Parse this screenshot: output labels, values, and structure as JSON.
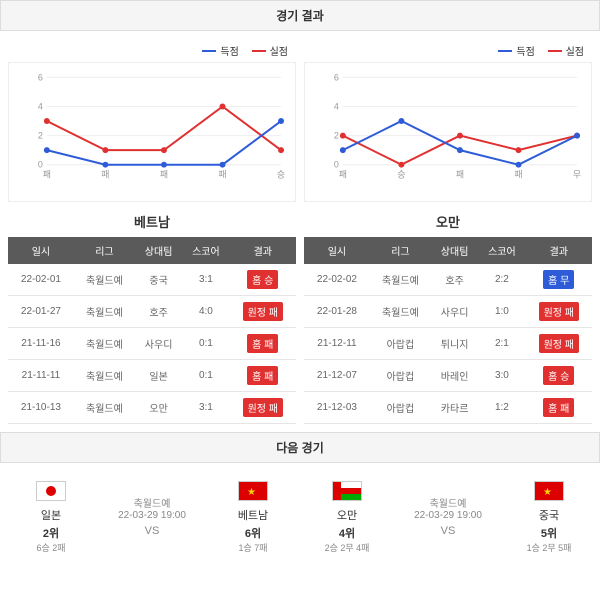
{
  "sections": {
    "results_header": "경기 결과",
    "next_header": "다음 경기"
  },
  "chart_style": {
    "goals_for_color": "#2e5bd8",
    "goals_against_color": "#e03030",
    "grid_color": "#eeeeee",
    "axis_color": "#cccccc",
    "ymax": 6,
    "ytick_step": 2,
    "line_width": 2,
    "marker_radius": 3
  },
  "legend": {
    "for_label": "득점",
    "against_label": "실점"
  },
  "table_headers": [
    "일시",
    "리그",
    "상대팀",
    "스코어",
    "결과"
  ],
  "result_colors": {
    "home_win": "#e03030",
    "home_loss": "#e03030",
    "home_draw": "#2e5bd8",
    "away_win": "#2e5bd8",
    "away_loss": "#e03030"
  },
  "teams": [
    {
      "name": "베트남",
      "chart": {
        "x_labels": [
          "패",
          "패",
          "패",
          "패",
          "승"
        ],
        "for": [
          1,
          0,
          0,
          0,
          3
        ],
        "against": [
          3,
          1,
          1,
          4,
          1
        ]
      },
      "rows": [
        {
          "date": "22-02-01",
          "league": "축월드예",
          "opp": "중국",
          "score": "3:1",
          "result": "홈 승",
          "bg": "#e03030"
        },
        {
          "date": "22-01-27",
          "league": "축월드예",
          "opp": "호주",
          "score": "4:0",
          "result": "원정 패",
          "bg": "#e03030"
        },
        {
          "date": "21-11-16",
          "league": "축월드예",
          "opp": "사우디",
          "score": "0:1",
          "result": "홈 패",
          "bg": "#e03030"
        },
        {
          "date": "21-11-11",
          "league": "축월드예",
          "opp": "일본",
          "score": "0:1",
          "result": "홈 패",
          "bg": "#e03030"
        },
        {
          "date": "21-10-13",
          "league": "축월드예",
          "opp": "오만",
          "score": "3:1",
          "result": "원정 패",
          "bg": "#e03030"
        }
      ]
    },
    {
      "name": "오만",
      "chart": {
        "x_labels": [
          "패",
          "승",
          "패",
          "패",
          "무"
        ],
        "for": [
          1,
          3,
          1,
          0,
          2
        ],
        "against": [
          2,
          0,
          2,
          1,
          2
        ]
      },
      "rows": [
        {
          "date": "22-02-02",
          "league": "축월드예",
          "opp": "호주",
          "score": "2:2",
          "result": "홈 무",
          "bg": "#2e5bd8"
        },
        {
          "date": "22-01-28",
          "league": "축월드예",
          "opp": "사우디",
          "score": "1:0",
          "result": "원정 패",
          "bg": "#e03030"
        },
        {
          "date": "21-12-11",
          "league": "아랍컵",
          "opp": "튀니지",
          "score": "2:1",
          "result": "원정 패",
          "bg": "#e03030"
        },
        {
          "date": "21-12-07",
          "league": "아랍컵",
          "opp": "바레인",
          "score": "3:0",
          "result": "홈 승",
          "bg": "#e03030"
        },
        {
          "date": "21-12-03",
          "league": "아랍컵",
          "opp": "카타르",
          "score": "1:2",
          "result": "홈 패",
          "bg": "#e03030"
        }
      ]
    }
  ],
  "next_matches": [
    {
      "left": {
        "name": "일본",
        "rank": "2위",
        "record": "6승 2패",
        "flag_bg": "#fff",
        "flag_dot": "#d00"
      },
      "center": {
        "league": "축월드예",
        "datetime": "22-03-29 19:00"
      },
      "right": {
        "name": "베트남",
        "rank": "6위",
        "record": "1승 7패",
        "flag_bg": "#d00",
        "flag_star": "#fc0"
      }
    },
    {
      "left": {
        "name": "오만",
        "rank": "4위",
        "record": "2승 2무 4패",
        "flag_bg": "#fff",
        "flag_stripe1": "#d00",
        "flag_stripe2": "#0a0"
      },
      "center": {
        "league": "축월드예",
        "datetime": "22-03-29 19:00"
      },
      "right": {
        "name": "중국",
        "rank": "5위",
        "record": "1승 2무 5패",
        "flag_bg": "#d00",
        "flag_star": "#fc0"
      }
    }
  ]
}
